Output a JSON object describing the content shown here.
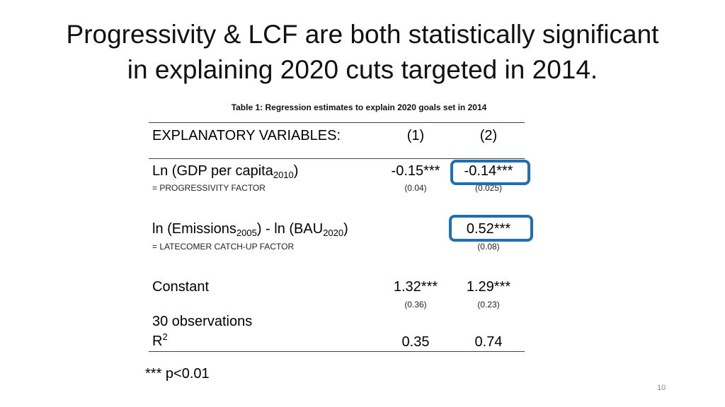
{
  "title_line1": "Progressivity & LCF are both statistically significant",
  "title_line2": "in explaining 2020 cuts targeted in 2014.",
  "caption": "Table 1: Regression estimates to explain 2020 goals set in 2014",
  "header": {
    "label": "EXPLANATORY VARIABLES:",
    "col1": "(1)",
    "col2": "(2)"
  },
  "rows": {
    "gdp": {
      "label_main": "Ln (GDP per capita",
      "label_sub": "2010",
      "label_close": ")",
      "note": "= PROGRESSIVITY FACTOR",
      "col1": "-0.15***",
      "col1_se": "(0.04)",
      "col2": "-0.14***",
      "col2_se": "(0.025)"
    },
    "emissions": {
      "label_a": "ln (Emissions",
      "label_sub_a": "2005",
      "label_b": ") - ln (BAU",
      "label_sub_b": "2020",
      "label_c": ")",
      "note": "= LATECOMER CATCH-UP FACTOR",
      "col2": "0.52***",
      "col2_se": "(0.08)"
    },
    "constant": {
      "label": "Constant",
      "col1": "1.32***",
      "col1_se": "(0.36)",
      "col2": "1.29***",
      "col2_se": "(0.23)"
    },
    "observations": {
      "label": "30 observations"
    },
    "r2": {
      "label_main": "R",
      "label_sup": "2",
      "col1": "0.35",
      "col2": "0.74"
    }
  },
  "footnote": "*** p<0.01",
  "page_number": "10",
  "colors": {
    "highlight": "#1f6fb5"
  }
}
